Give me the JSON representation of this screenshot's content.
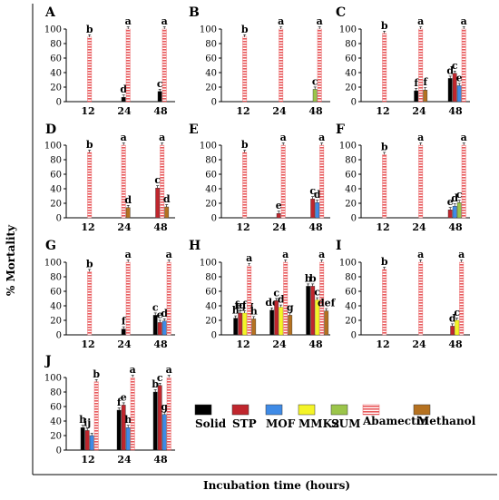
{
  "figure": {
    "ylabel": "% Mortality",
    "xlabel": "Incubation time (hours)"
  },
  "legend": [
    {
      "name": "Solid",
      "color": "#000000",
      "pattern": "solid"
    },
    {
      "name": "STP",
      "color": "#c0262d",
      "pattern": "solid"
    },
    {
      "name": "MOF",
      "color": "#3f8be6",
      "pattern": "solid"
    },
    {
      "name": "MMK2",
      "color": "#f4f428",
      "pattern": "solid"
    },
    {
      "name": "SUM",
      "color": "#9bc54a",
      "pattern": "solid"
    },
    {
      "name": "Abamectin",
      "color": "#e8585a",
      "pattern": "dots"
    },
    {
      "name": "Methanol",
      "color": "#b5711f",
      "pattern": "solid"
    }
  ],
  "chart_data": [
    {
      "panel": "A",
      "type": "bar",
      "categories": [
        "12",
        "24",
        "48"
      ],
      "ylim": [
        0,
        100
      ],
      "yticks": [
        0,
        20,
        40,
        60,
        80,
        100
      ],
      "series": [
        {
          "name": "Solid",
          "values": [
            0,
            6,
            14
          ]
        },
        {
          "name": "STP",
          "values": [
            0,
            0,
            0
          ]
        },
        {
          "name": "MOF",
          "values": [
            0,
            0,
            0
          ]
        },
        {
          "name": "MMK2",
          "values": [
            0,
            0,
            0
          ]
        },
        {
          "name": "SUM",
          "values": [
            0,
            0,
            0
          ]
        },
        {
          "name": "Abamectin",
          "values": [
            89,
            100,
            100
          ]
        },
        {
          "name": "Methanol",
          "values": [
            0,
            0,
            0
          ]
        }
      ],
      "letters": [
        [
          "",
          "d",
          "c"
        ],
        [
          "",
          "",
          ""
        ],
        [
          "",
          "",
          ""
        ],
        [
          "",
          "",
          ""
        ],
        [
          "",
          "",
          ""
        ],
        [
          "b",
          "a",
          "a"
        ],
        [
          "",
          "",
          ""
        ]
      ]
    },
    {
      "panel": "B",
      "type": "bar",
      "categories": [
        "12",
        "24",
        "48"
      ],
      "ylim": [
        0,
        100
      ],
      "yticks": [
        0,
        20,
        40,
        60,
        80,
        100
      ],
      "series": [
        {
          "name": "Solid",
          "values": [
            0,
            0,
            0
          ]
        },
        {
          "name": "STP",
          "values": [
            0,
            0,
            0
          ]
        },
        {
          "name": "MOF",
          "values": [
            0,
            0,
            0
          ]
        },
        {
          "name": "MMK2",
          "values": [
            0,
            0,
            0
          ]
        },
        {
          "name": "SUM",
          "values": [
            0,
            0,
            17
          ]
        },
        {
          "name": "Abamectin",
          "values": [
            89,
            100,
            100
          ]
        },
        {
          "name": "Methanol",
          "values": [
            0,
            0,
            0
          ]
        }
      ],
      "letters": [
        [
          "",
          "",
          ""
        ],
        [
          "",
          "",
          ""
        ],
        [
          "",
          "",
          ""
        ],
        [
          "",
          "",
          ""
        ],
        [
          "",
          "",
          "c"
        ],
        [
          "b",
          "a",
          "a"
        ],
        [
          "",
          "",
          ""
        ]
      ]
    },
    {
      "panel": "C",
      "type": "bar",
      "categories": [
        "12",
        "24",
        "48"
      ],
      "ylim": [
        0,
        100
      ],
      "yticks": [
        0,
        20,
        40,
        60,
        80,
        100
      ],
      "series": [
        {
          "name": "Solid",
          "values": [
            0,
            15,
            32
          ]
        },
        {
          "name": "STP",
          "values": [
            0,
            0,
            39
          ]
        },
        {
          "name": "MOF",
          "values": [
            0,
            0,
            22
          ]
        },
        {
          "name": "MMK2",
          "values": [
            0,
            0,
            0
          ]
        },
        {
          "name": "SUM",
          "values": [
            0,
            0,
            0
          ]
        },
        {
          "name": "Abamectin",
          "values": [
            94,
            100,
            100
          ]
        },
        {
          "name": "Methanol",
          "values": [
            0,
            16,
            0
          ]
        }
      ],
      "letters": [
        [
          "",
          "f",
          "d"
        ],
        [
          "",
          "",
          "c"
        ],
        [
          "",
          "",
          "e"
        ],
        [
          "",
          "",
          ""
        ],
        [
          "",
          "",
          ""
        ],
        [
          "b",
          "a",
          "a"
        ],
        [
          "",
          "f",
          ""
        ]
      ]
    },
    {
      "panel": "D",
      "type": "bar",
      "categories": [
        "12",
        "24",
        "48"
      ],
      "ylim": [
        0,
        100
      ],
      "yticks": [
        0,
        20,
        40,
        60,
        80,
        100
      ],
      "series": [
        {
          "name": "Solid",
          "values": [
            0,
            0,
            0
          ]
        },
        {
          "name": "STP",
          "values": [
            0,
            0,
            41
          ]
        },
        {
          "name": "MOF",
          "values": [
            0,
            0,
            0
          ]
        },
        {
          "name": "MMK2",
          "values": [
            0,
            0,
            0
          ]
        },
        {
          "name": "SUM",
          "values": [
            0,
            0,
            0
          ]
        },
        {
          "name": "Abamectin",
          "values": [
            90,
            100,
            100
          ]
        },
        {
          "name": "Methanol",
          "values": [
            0,
            14,
            15
          ]
        }
      ],
      "letters": [
        [
          "",
          "",
          ""
        ],
        [
          "",
          "",
          "c"
        ],
        [
          "",
          "",
          ""
        ],
        [
          "",
          "",
          ""
        ],
        [
          "",
          "",
          ""
        ],
        [
          "b",
          "a",
          "a"
        ],
        [
          "",
          "d",
          "d"
        ]
      ]
    },
    {
      "panel": "E",
      "type": "bar",
      "categories": [
        "12",
        "24",
        "48"
      ],
      "ylim": [
        0,
        100
      ],
      "yticks": [
        0,
        20,
        40,
        60,
        80,
        100
      ],
      "series": [
        {
          "name": "Solid",
          "values": [
            0,
            0,
            0
          ]
        },
        {
          "name": "STP",
          "values": [
            0,
            6,
            26
          ]
        },
        {
          "name": "MOF",
          "values": [
            0,
            0,
            21
          ]
        },
        {
          "name": "MMK2",
          "values": [
            0,
            0,
            0
          ]
        },
        {
          "name": "SUM",
          "values": [
            0,
            0,
            0
          ]
        },
        {
          "name": "Abamectin",
          "values": [
            90,
            100,
            100
          ]
        },
        {
          "name": "Methanol",
          "values": [
            0,
            0,
            0
          ]
        }
      ],
      "letters": [
        [
          "",
          "",
          ""
        ],
        [
          "",
          "e",
          "c"
        ],
        [
          "",
          "",
          "d"
        ],
        [
          "",
          "",
          ""
        ],
        [
          "",
          "",
          ""
        ],
        [
          "b",
          "a",
          "a"
        ],
        [
          "",
          "",
          ""
        ]
      ]
    },
    {
      "panel": "F",
      "type": "bar",
      "categories": [
        "12",
        "24",
        "48"
      ],
      "ylim": [
        0,
        100
      ],
      "yticks": [
        0,
        20,
        40,
        60,
        80,
        100
      ],
      "series": [
        {
          "name": "Solid",
          "values": [
            0,
            0,
            0
          ]
        },
        {
          "name": "STP",
          "values": [
            0,
            0,
            11
          ]
        },
        {
          "name": "MOF",
          "values": [
            0,
            0,
            16
          ]
        },
        {
          "name": "MMK2",
          "values": [
            0,
            0,
            0
          ]
        },
        {
          "name": "SUM",
          "values": [
            0,
            0,
            21
          ]
        },
        {
          "name": "Abamectin",
          "values": [
            87,
            100,
            100
          ]
        },
        {
          "name": "Methanol",
          "values": [
            0,
            0,
            0
          ]
        }
      ],
      "letters": [
        [
          "",
          "",
          ""
        ],
        [
          "",
          "",
          "e"
        ],
        [
          "",
          "",
          "d"
        ],
        [
          "",
          "",
          ""
        ],
        [
          "",
          "",
          "c"
        ],
        [
          "b",
          "a",
          "a"
        ],
        [
          "",
          "",
          ""
        ]
      ]
    },
    {
      "panel": "G",
      "type": "bar",
      "categories": [
        "12",
        "24",
        "48"
      ],
      "ylim": [
        0,
        100
      ],
      "yticks": [
        0,
        20,
        40,
        60,
        80,
        100
      ],
      "series": [
        {
          "name": "Solid",
          "values": [
            0,
            8,
            27
          ]
        },
        {
          "name": "STP",
          "values": [
            0,
            0,
            17
          ]
        },
        {
          "name": "MOF",
          "values": [
            0,
            0,
            19
          ]
        },
        {
          "name": "MMK2",
          "values": [
            0,
            0,
            0
          ]
        },
        {
          "name": "SUM",
          "values": [
            0,
            0,
            0
          ]
        },
        {
          "name": "Abamectin",
          "values": [
            87,
            100,
            100
          ]
        },
        {
          "name": "Methanol",
          "values": [
            0,
            0,
            0
          ]
        }
      ],
      "letters": [
        [
          "",
          "f",
          "c"
        ],
        [
          "",
          "",
          "e"
        ],
        [
          "",
          "",
          "d"
        ],
        [
          "",
          "",
          ""
        ],
        [
          "",
          "",
          ""
        ],
        [
          "b",
          "a",
          "a"
        ],
        [
          "",
          "",
          ""
        ]
      ]
    },
    {
      "panel": "H",
      "type": "bar",
      "categories": [
        "12",
        "24",
        "48"
      ],
      "ylim": [
        0,
        100
      ],
      "yticks": [
        0,
        20,
        40,
        60,
        80,
        100
      ],
      "series": [
        {
          "name": "Solid",
          "values": [
            23,
            34,
            67
          ]
        },
        {
          "name": "STP",
          "values": [
            30,
            47,
            67
          ]
        },
        {
          "name": "MOF",
          "values": [
            0,
            0,
            0
          ]
        },
        {
          "name": "MMK2",
          "values": [
            30,
            38,
            48
          ]
        },
        {
          "name": "SUM",
          "values": [
            0,
            0,
            0
          ]
        },
        {
          "name": "Abamectin",
          "values": [
            95,
            100,
            100
          ]
        },
        {
          "name": "Methanol",
          "values": [
            22,
            27,
            33
          ]
        }
      ],
      "letters": [
        [
          "h",
          "de",
          "b"
        ],
        [
          "fg",
          "c",
          "b"
        ],
        [
          "",
          "",
          ""
        ],
        [
          "efg",
          "d",
          "c"
        ],
        [
          "",
          "",
          ""
        ],
        [
          "a",
          "a",
          "a"
        ],
        [
          "h",
          "g",
          "def"
        ]
      ]
    },
    {
      "panel": "I",
      "type": "bar",
      "categories": [
        "12",
        "24",
        "48"
      ],
      "ylim": [
        0,
        100
      ],
      "yticks": [
        0,
        20,
        40,
        60,
        80,
        100
      ],
      "series": [
        {
          "name": "Solid",
          "values": [
            0,
            0,
            0
          ]
        },
        {
          "name": "STP",
          "values": [
            0,
            0,
            12
          ]
        },
        {
          "name": "MOF",
          "values": [
            0,
            0,
            0
          ]
        },
        {
          "name": "MMK2",
          "values": [
            0,
            0,
            20
          ]
        },
        {
          "name": "SUM",
          "values": [
            0,
            0,
            0
          ]
        },
        {
          "name": "Abamectin",
          "values": [
            90,
            100,
            100
          ]
        },
        {
          "name": "Methanol",
          "values": [
            0,
            0,
            0
          ]
        }
      ],
      "letters": [
        [
          "",
          "",
          ""
        ],
        [
          "",
          "",
          "d"
        ],
        [
          "",
          "",
          ""
        ],
        [
          "",
          "",
          "c"
        ],
        [
          "",
          "",
          ""
        ],
        [
          "b",
          "a",
          "a"
        ],
        [
          "",
          "",
          ""
        ]
      ]
    },
    {
      "panel": "J",
      "type": "bar",
      "categories": [
        "12",
        "24",
        "48"
      ],
      "ylim": [
        0,
        100
      ],
      "yticks": [
        0,
        20,
        40,
        60,
        80,
        100
      ],
      "series": [
        {
          "name": "Solid",
          "values": [
            31,
            55,
            80
          ]
        },
        {
          "name": "STP",
          "values": [
            27,
            62,
            89
          ]
        },
        {
          "name": "MOF",
          "values": [
            20,
            31,
            49
          ]
        },
        {
          "name": "MMK2",
          "values": [
            0,
            0,
            0
          ]
        },
        {
          "name": "SUM",
          "values": [
            0,
            0,
            0
          ]
        },
        {
          "name": "Abamectin",
          "values": [
            94,
            100,
            100
          ]
        },
        {
          "name": "Methanol",
          "values": [
            0,
            0,
            0
          ]
        }
      ],
      "letters": [
        [
          "h",
          "f",
          "b"
        ],
        [
          "ij",
          "e",
          "c"
        ],
        [
          "",
          "h",
          "g"
        ],
        [
          "",
          "",
          ""
        ],
        [
          "",
          "",
          ""
        ],
        [
          "b",
          "a",
          "a"
        ],
        [
          "",
          "",
          ""
        ]
      ]
    }
  ]
}
